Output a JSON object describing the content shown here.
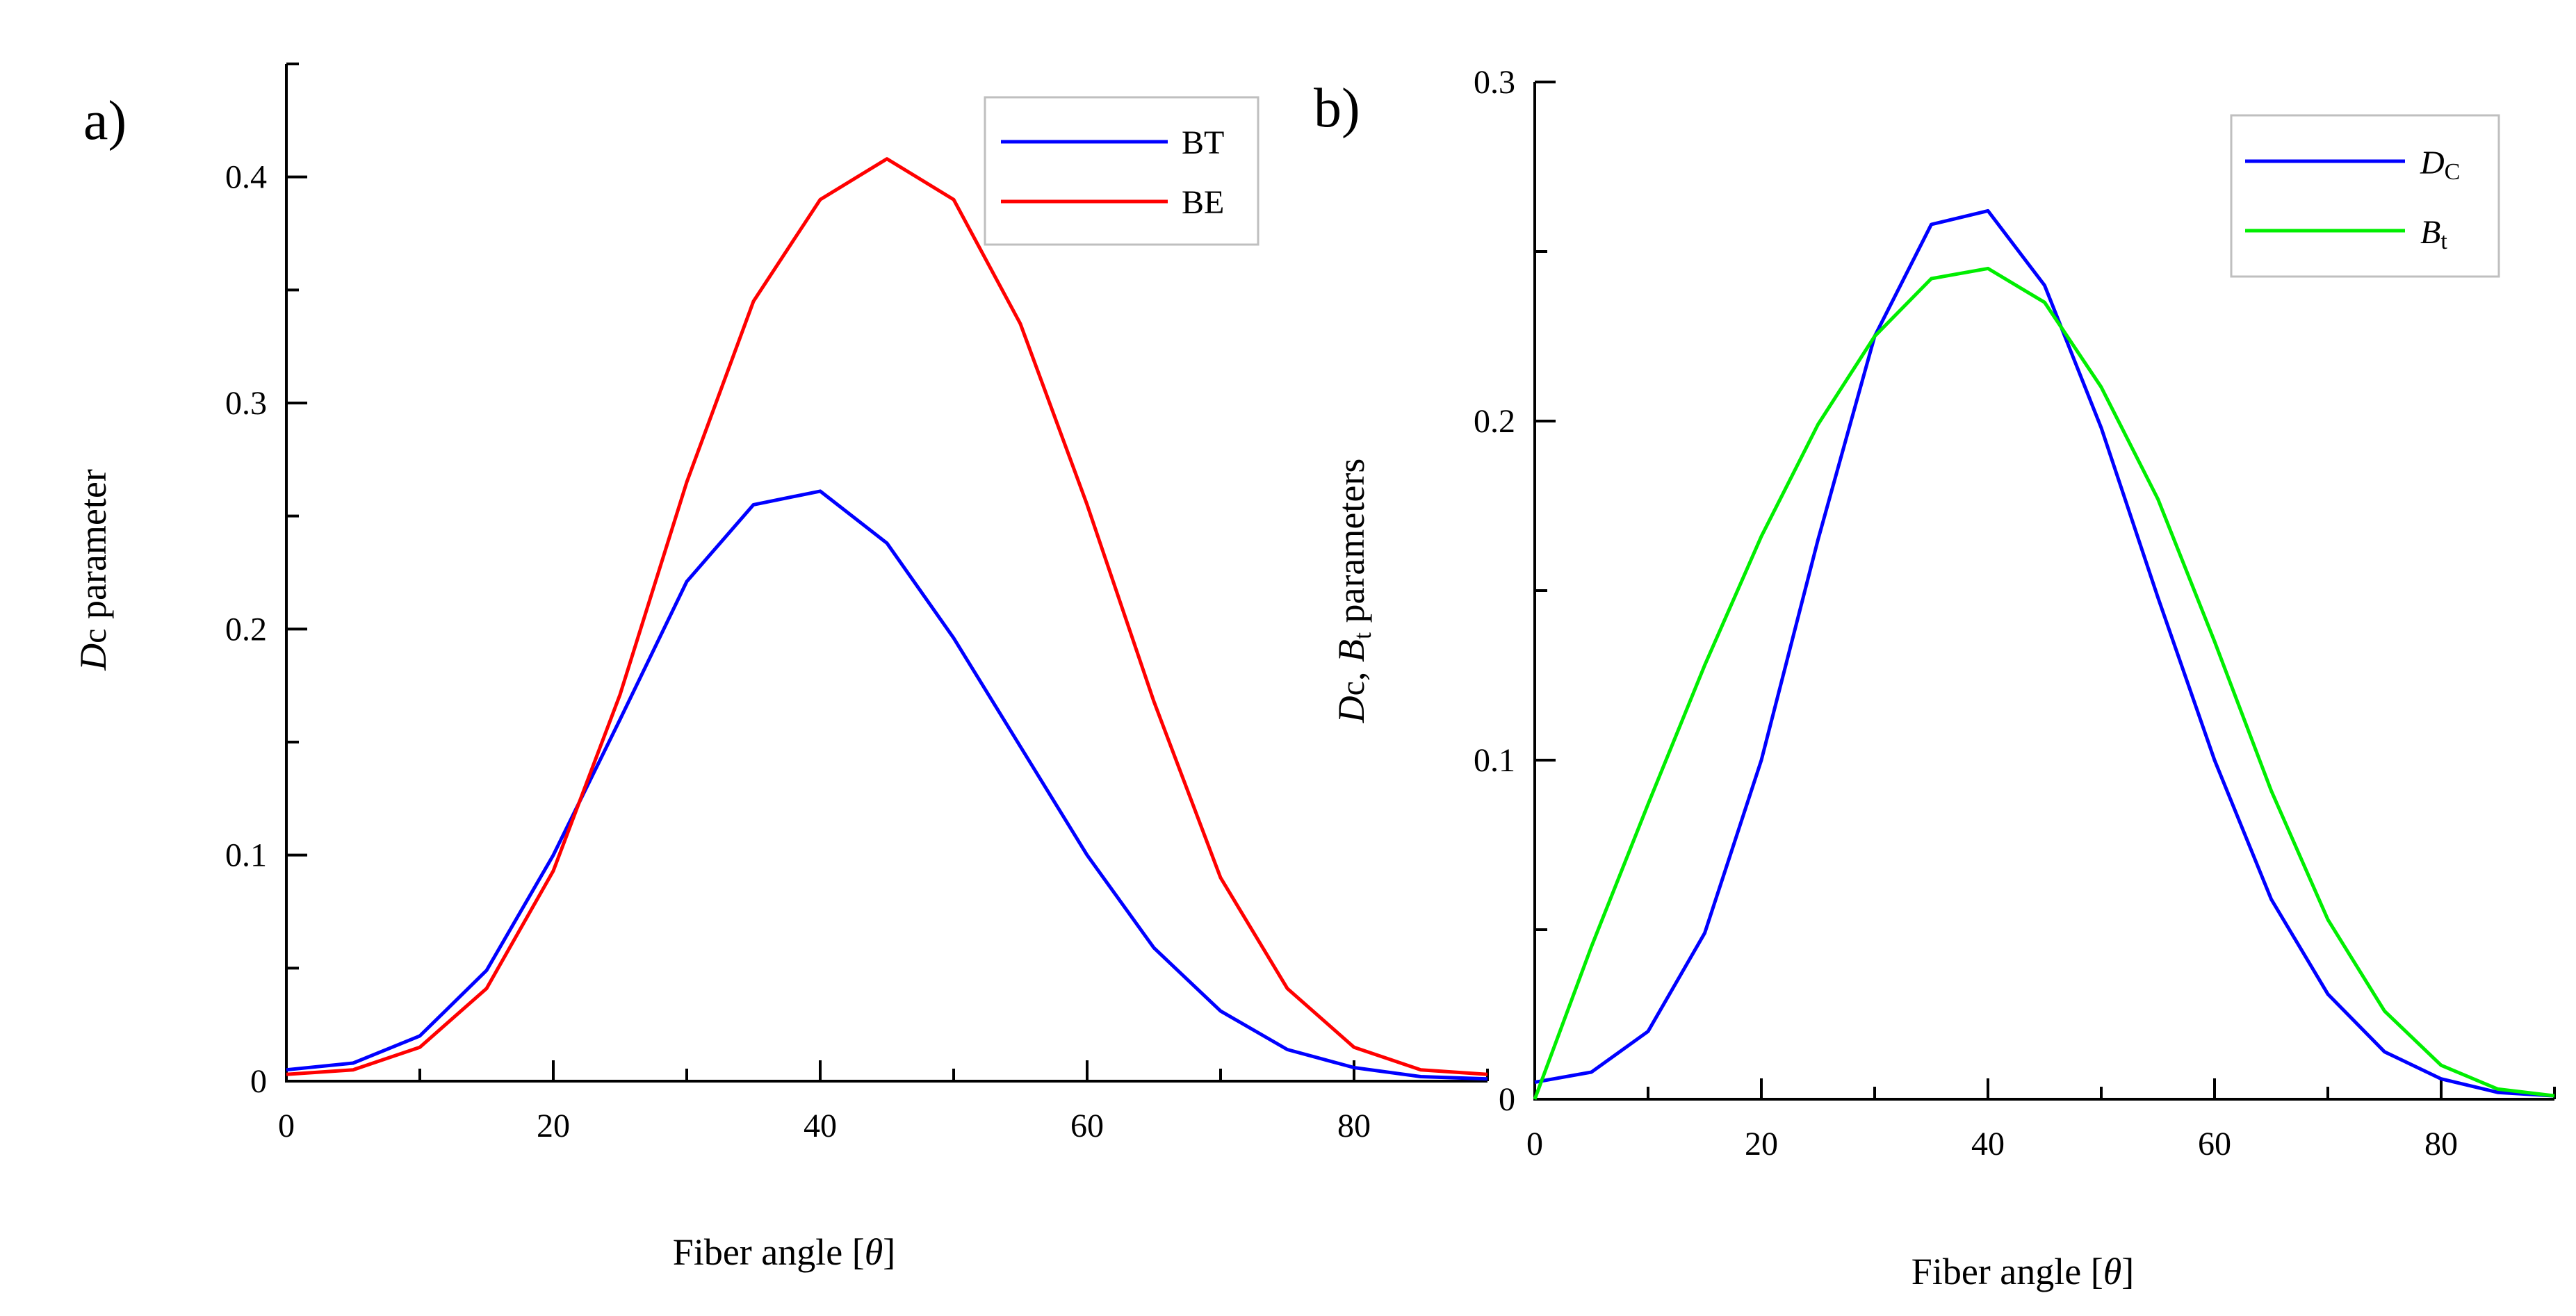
{
  "chart_data": [
    {
      "panel": "a)",
      "type": "line",
      "xlabel": "Fiber angle [θ]",
      "xlabel_parts": {
        "prefix": "Fiber angle [",
        "symbol": "θ",
        "suffix": "]"
      },
      "ylabel": "Dc parameter",
      "ylabel_parts": {
        "main": "D",
        "sub": "c",
        "rest": " parameter"
      },
      "xlim": [
        0,
        90
      ],
      "ylim": [
        0,
        0.45
      ],
      "xticks": [
        0,
        20,
        40,
        60,
        80
      ],
      "xtick_labels": [
        "0",
        "20",
        "40",
        "60",
        "80"
      ],
      "yticks": [
        0,
        0.1,
        0.2,
        0.3,
        0.4
      ],
      "ytick_labels": [
        "0",
        "0.1",
        "0.2",
        "0.3",
        "0.4"
      ],
      "legend_position": "top-right",
      "x": [
        0,
        5,
        10,
        15,
        20,
        25,
        30,
        35,
        40,
        45,
        50,
        55,
        60,
        65,
        70,
        75,
        80,
        85,
        90
      ],
      "series": [
        {
          "name": "BT",
          "color": "#0000ff",
          "values": [
            0.005,
            0.008,
            0.02,
            0.049,
            0.1,
            0.16,
            0.221,
            0.255,
            0.261,
            0.238,
            0.196,
            0.148,
            0.1,
            0.059,
            0.031,
            0.014,
            0.006,
            0.002,
            0.001
          ]
        },
        {
          "name": "BE",
          "color": "#ff0000",
          "values": [
            0.003,
            0.005,
            0.015,
            0.041,
            0.093,
            0.171,
            0.265,
            0.345,
            0.39,
            0.408,
            0.39,
            0.335,
            0.255,
            0.168,
            0.09,
            0.041,
            0.015,
            0.005,
            0.003
          ]
        }
      ]
    },
    {
      "panel": "b)",
      "type": "line",
      "xlabel": "Fiber angle [θ]",
      "xlabel_parts": {
        "prefix": "Fiber angle [",
        "symbol": "θ",
        "suffix": "]"
      },
      "ylabel": "Dc, Bt parameters",
      "ylabel_parts": {
        "d": "D",
        "d_sub": "c",
        "sep": ", ",
        "b": "B",
        "b_sub": "t",
        "rest": " parameters"
      },
      "xlim": [
        0,
        90
      ],
      "ylim": [
        0,
        0.3
      ],
      "xticks": [
        0,
        20,
        40,
        60,
        80
      ],
      "xtick_labels": [
        "0",
        "20",
        "40",
        "60",
        "80"
      ],
      "yticks": [
        0,
        0.1,
        0.2,
        0.3
      ],
      "ytick_labels": [
        "0",
        "0.1",
        "0.2",
        "0.3"
      ],
      "legend_position": "top-right",
      "x": [
        0,
        5,
        10,
        15,
        20,
        25,
        30,
        35,
        40,
        45,
        50,
        55,
        60,
        65,
        70,
        75,
        80,
        85,
        90
      ],
      "series": [
        {
          "name": "Dc",
          "name_main": "D",
          "name_sub": "C",
          "color": "#0000ff",
          "values": [
            0.005,
            0.008,
            0.02,
            0.049,
            0.1,
            0.165,
            0.225,
            0.258,
            0.262,
            0.24,
            0.198,
            0.148,
            0.1,
            0.059,
            0.031,
            0.014,
            0.006,
            0.002,
            0.001
          ]
        },
        {
          "name": "Bt",
          "name_main": "B",
          "name_sub": "t",
          "color": "#00ee00",
          "values": [
            0.0,
            0.045,
            0.087,
            0.128,
            0.166,
            0.199,
            0.225,
            0.242,
            0.245,
            0.235,
            0.21,
            0.177,
            0.135,
            0.091,
            0.053,
            0.026,
            0.01,
            0.003,
            0.001
          ]
        }
      ]
    }
  ]
}
